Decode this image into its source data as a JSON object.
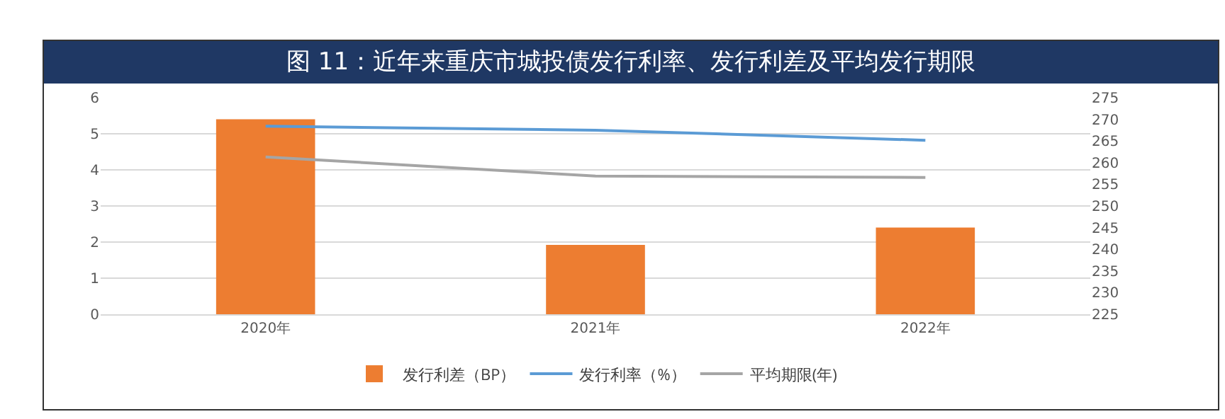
{
  "chart_data": {
    "type": "bar",
    "title": "图 11：近年来重庆市城投债发行利率、发行利差及平均发行期限",
    "categories": [
      "2020年",
      "2021年",
      "2022年"
    ],
    "series": [
      {
        "name": "发行利差（BP）",
        "axis": "y2",
        "color": "#ed7d31",
        "values": [
          270,
          241,
          245
        ]
      },
      {
        "name": "发行利率（%）",
        "type": "line",
        "color": "#5b9bd5",
        "values": [
          5.21,
          5.1,
          4.82
        ]
      },
      {
        "name": "平均期限(年)",
        "type": "line",
        "color": "#a5a5a5",
        "values": [
          4.36,
          3.83,
          3.79
        ]
      }
    ],
    "ylim": [
      0,
      6
    ],
    "yticks": [
      0,
      1,
      2,
      3,
      4,
      5,
      6
    ],
    "y2lim": [
      225,
      275
    ],
    "y2ticks": [
      225,
      230,
      235,
      240,
      245,
      250,
      255,
      260,
      265,
      270,
      275
    ],
    "grid": "y",
    "legend": "bottom",
    "marker": "none",
    "line_style": "solid"
  }
}
